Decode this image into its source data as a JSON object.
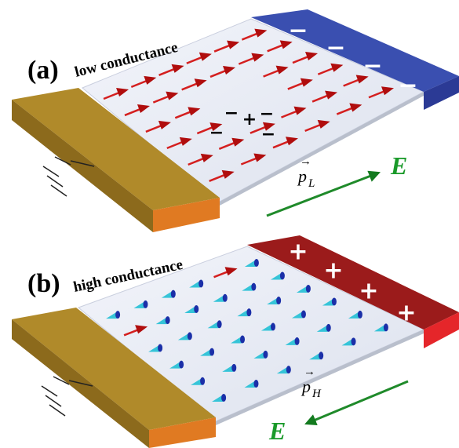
{
  "panels": [
    {
      "label": "(a)",
      "title": "low conductance",
      "electrode_signs": [
        "−",
        "−",
        "−",
        "−"
      ],
      "center_charges": [
        "−",
        "+",
        "−",
        "−",
        "−"
      ],
      "field_label": "E",
      "dipole_label": {
        "symbol": "p",
        "arrow": "→",
        "subscript": "L"
      }
    },
    {
      "label": "(b)",
      "title": "high conductance",
      "electrode_signs": [
        "+",
        "+",
        "+",
        "+"
      ],
      "field_label": "E",
      "dipole_label": {
        "symbol": "p",
        "arrow": "→",
        "subscript": "H"
      }
    }
  ]
}
